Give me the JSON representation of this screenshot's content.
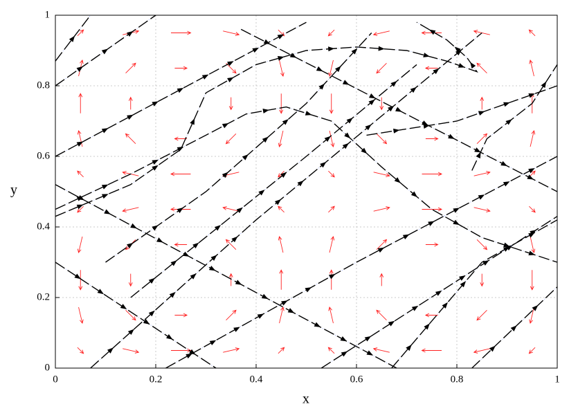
{
  "chart_data": {
    "type": "vector-field",
    "xlabel": "x",
    "ylabel": "y",
    "xlim": [
      0,
      1
    ],
    "ylim": [
      0,
      1
    ],
    "xticks": [
      0,
      0.2,
      0.4,
      0.6,
      0.8,
      1
    ],
    "yticks": [
      0,
      0.2,
      0.4,
      0.6,
      0.8,
      1
    ],
    "grid": true,
    "field_color": "#ff2020",
    "field": {
      "x": [
        0.05,
        0.15,
        0.25,
        0.35,
        0.45,
        0.55,
        0.65,
        0.75,
        0.85,
        0.95
      ],
      "y": [
        0.05,
        0.15,
        0.25,
        0.35,
        0.45,
        0.55,
        0.65,
        0.75,
        0.85,
        0.95
      ],
      "u": [
        [
          0.29,
          0.77,
          0.95,
          0.77,
          0.29,
          -0.29,
          -0.77,
          -0.95,
          -0.77,
          -0.29
        ],
        [
          0.18,
          0.48,
          0.59,
          0.48,
          0.18,
          -0.18,
          -0.48,
          -0.59,
          -0.48,
          -0.18
        ],
        [
          0,
          0,
          0,
          0,
          0,
          0,
          0,
          0,
          0,
          0
        ],
        [
          -0.18,
          -0.48,
          -0.59,
          -0.48,
          -0.18,
          0.18,
          0.48,
          0.59,
          0.48,
          0.18
        ],
        [
          -0.29,
          -0.77,
          -0.95,
          -0.77,
          -0.29,
          0.29,
          0.77,
          0.95,
          0.77,
          0.29
        ],
        [
          -0.29,
          -0.77,
          -0.95,
          -0.77,
          -0.29,
          0.29,
          0.77,
          0.95,
          0.77,
          0.29
        ],
        [
          -0.18,
          -0.48,
          -0.59,
          -0.48,
          -0.18,
          0.18,
          0.48,
          0.59,
          0.48,
          0.18
        ],
        [
          0,
          0,
          0,
          0,
          0,
          0,
          0,
          0,
          0,
          0
        ],
        [
          0.18,
          0.48,
          0.59,
          0.48,
          0.18,
          -0.18,
          -0.48,
          -0.59,
          -0.48,
          -0.18
        ],
        [
          0.29,
          0.77,
          0.95,
          0.77,
          0.29,
          -0.29,
          -0.77,
          -0.95,
          -0.77,
          -0.29
        ]
      ],
      "v": [
        [
          -0.29,
          -0.18,
          0,
          0.18,
          0.29,
          0.29,
          0.18,
          0,
          -0.18,
          -0.29
        ],
        [
          -0.77,
          -0.48,
          0,
          0.48,
          0.77,
          0.77,
          0.48,
          0,
          -0.48,
          -0.77
        ],
        [
          -0.95,
          -0.59,
          0,
          0.59,
          0.95,
          0.95,
          0.59,
          0,
          -0.59,
          -0.95
        ],
        [
          -0.77,
          -0.48,
          0,
          0.48,
          0.77,
          0.77,
          0.48,
          0,
          -0.48,
          -0.77
        ],
        [
          -0.29,
          -0.18,
          0,
          0.18,
          0.29,
          0.29,
          0.18,
          0,
          -0.18,
          -0.29
        ],
        [
          0.29,
          0.18,
          0,
          -0.18,
          -0.29,
          -0.29,
          -0.18,
          0,
          0.18,
          0.29
        ],
        [
          0.77,
          0.48,
          0,
          -0.48,
          -0.77,
          -0.77,
          -0.48,
          0,
          0.48,
          0.77
        ],
        [
          0.95,
          0.59,
          0,
          -0.59,
          -0.95,
          -0.95,
          -0.59,
          0,
          0.59,
          0.95
        ],
        [
          0.77,
          0.48,
          0,
          -0.48,
          -0.77,
          -0.77,
          -0.48,
          0,
          0.48,
          0.77
        ],
        [
          0.29,
          0.18,
          0,
          -0.18,
          -0.29,
          -0.29,
          -0.18,
          0,
          0.18,
          0.29
        ]
      ]
    },
    "trajectory_color": "#000000",
    "trajectories": [
      {
        "x": [
          0.0,
          0.07
        ],
        "y": [
          0.87,
          1.0
        ]
      },
      {
        "x": [
          0.0,
          0.2
        ],
        "y": [
          0.8,
          1.0
        ]
      },
      {
        "x": [
          0.0,
          0.5
        ],
        "y": [
          0.6,
          0.98
        ]
      },
      {
        "x": [
          0.0,
          0.15,
          0.25,
          0.3,
          0.4,
          0.5,
          0.6,
          0.7,
          0.78,
          0.84,
          0.82,
          0.78,
          0.72
        ],
        "y": [
          0.43,
          0.52,
          0.62,
          0.78,
          0.86,
          0.9,
          0.91,
          0.9,
          0.87,
          0.84,
          0.88,
          0.93,
          0.98
        ]
      },
      {
        "x": [
          0.0,
          0.15,
          0.3,
          0.38,
          0.46,
          0.55,
          0.65,
          0.75,
          0.85,
          1.0
        ],
        "y": [
          0.45,
          0.55,
          0.66,
          0.72,
          0.74,
          0.7,
          0.57,
          0.45,
          0.37,
          0.3
        ]
      },
      {
        "x": [
          0.1,
          0.3,
          0.5,
          0.63
        ],
        "y": [
          0.3,
          0.5,
          0.75,
          0.95
        ]
      },
      {
        "x": [
          0.15,
          0.5,
          0.72
        ],
        "y": [
          0.2,
          0.6,
          0.86
        ]
      },
      {
        "x": [
          0.07,
          0.4,
          0.85
        ],
        "y": [
          0.0,
          0.42,
          0.95
        ]
      },
      {
        "x": [
          0.0,
          0.32
        ],
        "y": [
          0.3,
          0.0
        ]
      },
      {
        "x": [
          0.0,
          0.68
        ],
        "y": [
          0.52,
          0.0
        ]
      },
      {
        "x": [
          0.37,
          1.0
        ],
        "y": [
          0.96,
          0.5
        ]
      },
      {
        "x": [
          0.62,
          0.8,
          1.0
        ],
        "y": [
          0.66,
          0.7,
          0.8
        ]
      },
      {
        "x": [
          0.83,
          0.86,
          0.95,
          1.0
        ],
        "y": [
          0.56,
          0.65,
          0.75,
          0.86
        ]
      },
      {
        "x": [
          0.22,
          0.6,
          1.0
        ],
        "y": [
          0.0,
          0.3,
          0.6
        ]
      },
      {
        "x": [
          0.53,
          1.0
        ],
        "y": [
          0.0,
          0.43
        ]
      },
      {
        "x": [
          0.67,
          0.85,
          1.0
        ],
        "y": [
          0.0,
          0.3,
          0.42
        ]
      },
      {
        "x": [
          0.83,
          1.0
        ],
        "y": [
          0.0,
          0.23
        ]
      }
    ]
  }
}
